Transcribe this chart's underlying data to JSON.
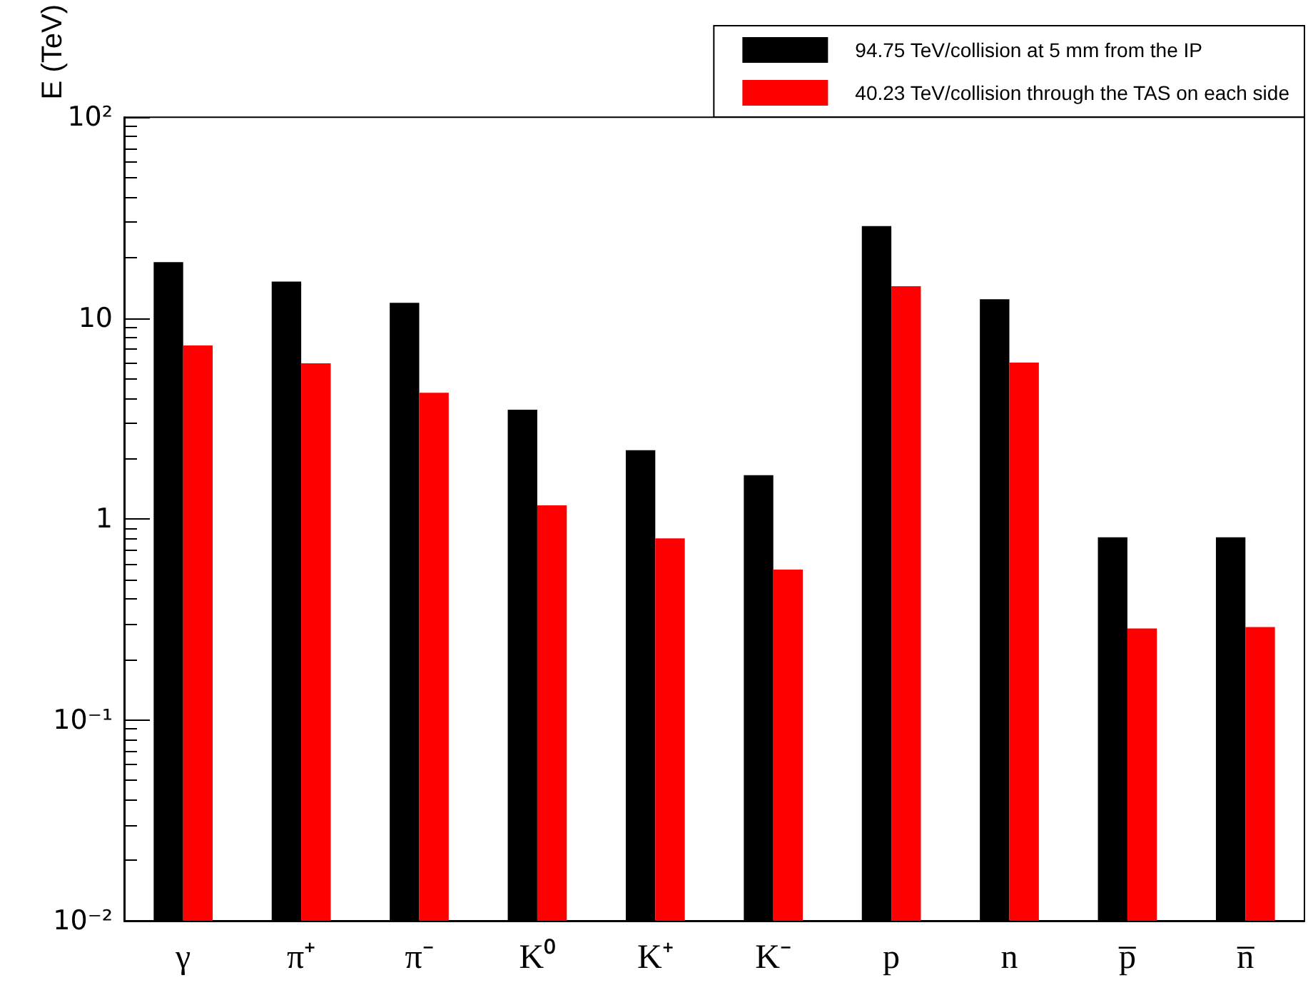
{
  "chart_data": {
    "type": "bar",
    "ylabel": "E (TeV)",
    "categories": [
      "γ",
      "π⁺",
      "π⁻",
      "K⁰",
      "K⁺",
      "K⁻",
      "p",
      "n",
      "p̅",
      "n̅"
    ],
    "series": [
      {
        "name": "94.75 TeV/collision at 5 mm from the IP",
        "color": "#000000",
        "values": [
          19,
          15.2,
          11.9,
          3.5,
          2.2,
          1.65,
          28.7,
          12.4,
          0.81,
          0.81
        ]
      },
      {
        "name": "40.23 TeV/collision through the TAS on each side",
        "color": "#ff0000",
        "values": [
          7.3,
          5.95,
          4.25,
          1.17,
          0.8,
          0.56,
          14.4,
          6.0,
          0.285,
          0.29
        ]
      }
    ],
    "log": "y",
    "ylim": [
      0.01,
      100
    ],
    "yticks": [
      {
        "value": 0.01,
        "label": "10⁻²"
      },
      {
        "value": 0.02,
        "label": null
      },
      {
        "value": 0.03,
        "label": null
      },
      {
        "value": 0.04,
        "label": null
      },
      {
        "value": 0.05,
        "label": null
      },
      {
        "value": 0.06,
        "label": null
      },
      {
        "value": 0.07,
        "label": null
      },
      {
        "value": 0.08,
        "label": null
      },
      {
        "value": 0.09,
        "label": null
      },
      {
        "value": 0.1,
        "label": "10⁻¹"
      },
      {
        "value": 0.2,
        "label": null
      },
      {
        "value": 0.3,
        "label": null
      },
      {
        "value": 0.4,
        "label": null
      },
      {
        "value": 0.5,
        "label": null
      },
      {
        "value": 0.6,
        "label": null
      },
      {
        "value": 0.7,
        "label": null
      },
      {
        "value": 0.8,
        "label": null
      },
      {
        "value": 0.9,
        "label": null
      },
      1,
      {
        "value": 2,
        "label": null
      },
      {
        "value": 3,
        "label": null
      },
      {
        "value": 4,
        "label": null
      },
      {
        "value": 5,
        "label": null
      },
      {
        "value": 6,
        "label": null
      },
      {
        "value": 7,
        "label": null
      },
      {
        "value": 8,
        "label": null
      },
      {
        "value": 9,
        "label": null
      },
      10,
      {
        "value": 20,
        "label": null
      },
      {
        "value": 30,
        "label": null
      },
      {
        "value": 40,
        "label": null
      },
      {
        "value": 50,
        "label": null
      },
      {
        "value": 60,
        "label": null
      },
      {
        "value": 70,
        "label": null
      },
      {
        "value": 80,
        "label": null
      },
      {
        "value": 90,
        "label": null
      },
      {
        "value": 100,
        "label": "10²"
      }
    ],
    "grid": false,
    "legend": "top right"
  }
}
